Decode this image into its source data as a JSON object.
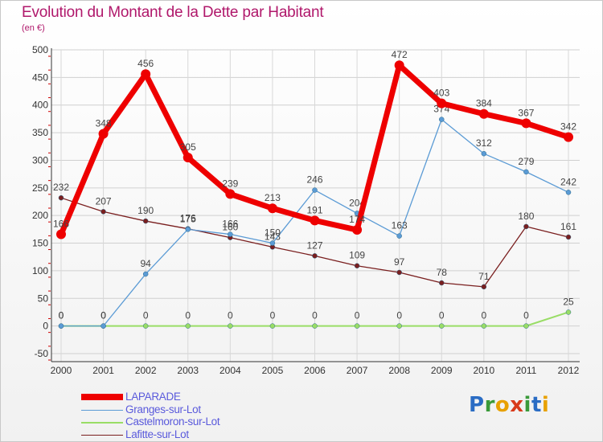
{
  "chart_data": {
    "type": "line",
    "title": "Evolution du Montant de la Dette par Habitant",
    "subtitle": "(en €)",
    "x": [
      "2000",
      "2001",
      "2002",
      "2003",
      "2004",
      "2005",
      "2006",
      "2007",
      "2008",
      "2009",
      "2010",
      "2011",
      "2012"
    ],
    "yticks": [
      "-50",
      "0",
      "50",
      "100",
      "150",
      "200",
      "250",
      "300",
      "350",
      "400",
      "450",
      "500"
    ],
    "ylim": [
      -50,
      500
    ],
    "grid": true,
    "legend_position": "bottom-left",
    "series": [
      {
        "name": "Lafitte-sur-Lot",
        "color": "#7a1f1f",
        "values": [
          232,
          207,
          190,
          176,
          160,
          143,
          127,
          109,
          97,
          78,
          71,
          180,
          161
        ],
        "labels": [
          "232",
          "207",
          "190",
          "176",
          "160",
          "143",
          "127",
          "109",
          "97",
          "78",
          "71",
          "180",
          "161"
        ]
      },
      {
        "name": "Castelmoron-sur-Lot",
        "color": "#99dd66",
        "values": [
          0,
          0,
          0,
          0,
          0,
          0,
          0,
          0,
          0,
          0,
          0,
          0,
          25
        ],
        "labels": [
          "0",
          "0",
          "0",
          "0",
          "0",
          "0",
          "0",
          "0",
          "0",
          "0",
          "0",
          "0",
          "25"
        ]
      },
      {
        "name": "Granges-sur-Lot",
        "color": "#5b9bd5",
        "values": [
          0,
          0,
          94,
          175,
          166,
          150,
          246,
          204,
          163,
          374,
          312,
          279,
          242
        ],
        "labels": [
          "0",
          "0",
          "94",
          "175",
          "166",
          "150",
          "246",
          "204",
          "163",
          "374",
          "312",
          "279",
          "242"
        ]
      },
      {
        "name": "LAPARADE",
        "color": "#ee0000",
        "values": [
          166,
          348,
          456,
          305,
          239,
          213,
          191,
          174,
          472,
          403,
          384,
          367,
          342
        ],
        "labels": [
          "166",
          "348",
          "456",
          "305",
          "239",
          "213",
          "191",
          "174",
          "472",
          "403",
          "384",
          "367",
          "342"
        ]
      }
    ]
  },
  "legend": [
    {
      "label": "LAPARADE",
      "color": "#ee0000"
    },
    {
      "label": "Granges-sur-Lot",
      "color": "#5b9bd5"
    },
    {
      "label": "Castelmoron-sur-Lot",
      "color": "#99dd66"
    },
    {
      "label": "Lafitte-sur-Lot",
      "color": "#7a1f1f"
    }
  ],
  "logo": "Proxiti"
}
